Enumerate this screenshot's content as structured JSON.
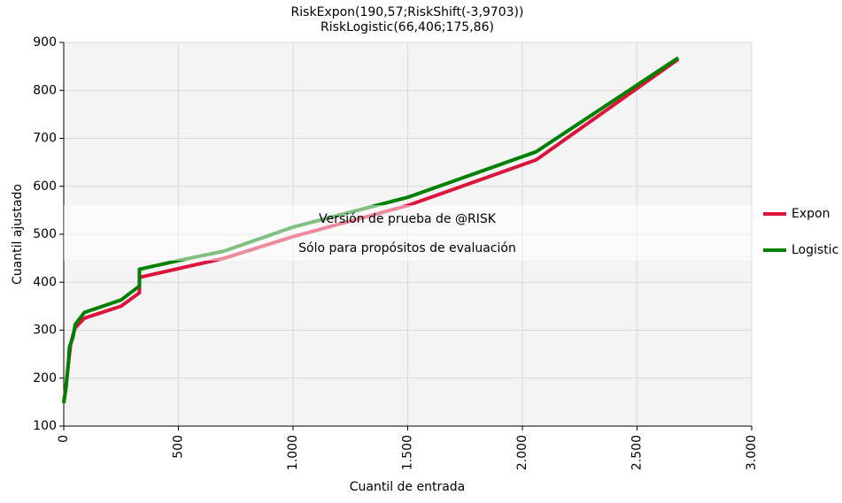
{
  "chart_data": {
    "type": "line",
    "subtitle": [
      "RiskExpon(190,57;RiskShift(-3,9703))",
      "RiskLogistic(66,406;175,86)"
    ],
    "xlabel": "Cuantil de entrada",
    "ylabel": "Cuantil ajustado",
    "xlim": [
      0,
      3000
    ],
    "ylim": [
      100,
      900
    ],
    "xticks": [
      0,
      500,
      {
        "value": 1000,
        "label": "1.000"
      },
      {
        "value": 1500,
        "label": "1.500"
      },
      {
        "value": 2000,
        "label": "2.000"
      },
      {
        "value": 2500,
        "label": "2.500"
      },
      {
        "value": 3000,
        "label": "3.000"
      }
    ],
    "yticks": [
      100,
      200,
      300,
      400,
      500,
      600,
      700,
      800,
      900
    ],
    "grid": true,
    "legend": "right",
    "watermark": [
      "Versión de prueba de @RISK",
      "Sólo para propósitos de evaluación"
    ],
    "series": [
      {
        "name": "Expon",
        "color": "#dc143c",
        "x": [
          0,
          10,
          20,
          30,
          40,
          50,
          90,
          250,
          330,
          330,
          700,
          1000,
          1500,
          2060,
          2680
        ],
        "values": [
          150,
          185,
          230,
          270,
          290,
          305,
          325,
          350,
          378,
          410,
          450,
          495,
          560,
          655,
          865
        ]
      },
      {
        "name": "Logistic",
        "color": "#008000",
        "x": [
          0,
          10,
          20,
          25,
          40,
          50,
          90,
          250,
          330,
          330,
          500,
          700,
          1000,
          1500,
          2060,
          2680
        ],
        "values": [
          148,
          180,
          230,
          265,
          285,
          312,
          337,
          363,
          392,
          427,
          445,
          465,
          515,
          577,
          672,
          868
        ]
      }
    ]
  }
}
